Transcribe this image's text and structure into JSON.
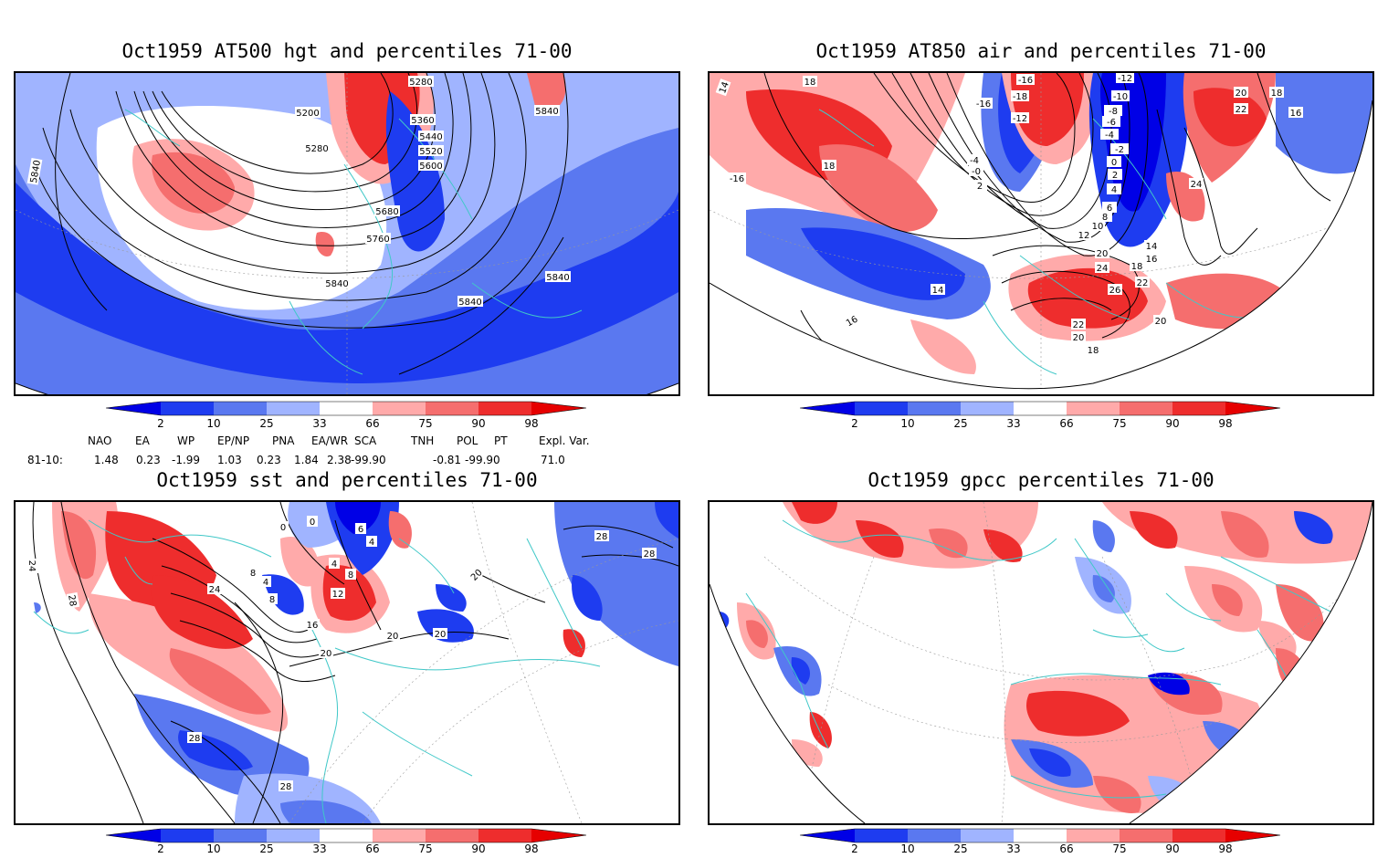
{
  "titles": {
    "tl": "Oct1959 AT500 hgt and percentiles 71-00",
    "tr": "Oct1959 AT850 air and percentiles 71-00",
    "bl": "Oct1959 sst and percentiles 71-00",
    "br": "Oct1959 gpcc percentiles 71-00"
  },
  "colorbar": {
    "ticks": [
      "2",
      "10",
      "25",
      "33",
      "66",
      "75",
      "90",
      "98"
    ],
    "colors": {
      "below2": "#0000e6",
      "b2_10": "#1e3cf0",
      "b10_25": "#5a78f0",
      "b25_33": "#a0b4ff",
      "b33_66": "#ffffff",
      "b66_75": "#ffaaaa",
      "b75_90": "#f56e6e",
      "b90_98": "#ee2d2d",
      "above98": "#e60000"
    }
  },
  "indices": {
    "headers": [
      "NAO",
      "EA",
      "WP",
      "EP/NP",
      "PNA",
      "EA/WR",
      "SCA",
      "TNH",
      "POL",
      "PT",
      "Expl. Var."
    ],
    "row_label": "81-10:",
    "values": [
      "1.48",
      "0.23",
      "-1.99",
      "1.03",
      "0.23",
      "1.84",
      "2.38",
      "-99.90",
      "-0.81",
      "-99.90",
      "71.0"
    ]
  },
  "contour_labels": {
    "tl": [
      "5280",
      "5200",
      "5360",
      "5440",
      "5280",
      "5520",
      "5600",
      "5840",
      "5840",
      "5680",
      "5760",
      "5840",
      "5840",
      "5840"
    ],
    "tr": [
      "14",
      "18",
      "-16",
      "-16",
      "-12",
      "-10",
      "-18",
      "-12",
      "-8",
      "-6",
      "-4",
      "-2",
      "20",
      "22",
      "16",
      "18",
      "18",
      "-16",
      "-4",
      "-0",
      "2",
      "0",
      "2",
      "4",
      "6",
      "8",
      "24",
      "10",
      "12",
      "14",
      "16",
      "20",
      "24",
      "18",
      "22",
      "14",
      "26",
      "20",
      "16",
      "22",
      "20",
      "18"
    ],
    "bl": [
      "0",
      "0",
      "6",
      "4",
      "24",
      "8",
      "4",
      "4",
      "8",
      "12",
      "8",
      "16",
      "20",
      "20",
      "20",
      "28",
      "28",
      "20",
      "24",
      "28",
      "28",
      "28"
    ]
  }
}
